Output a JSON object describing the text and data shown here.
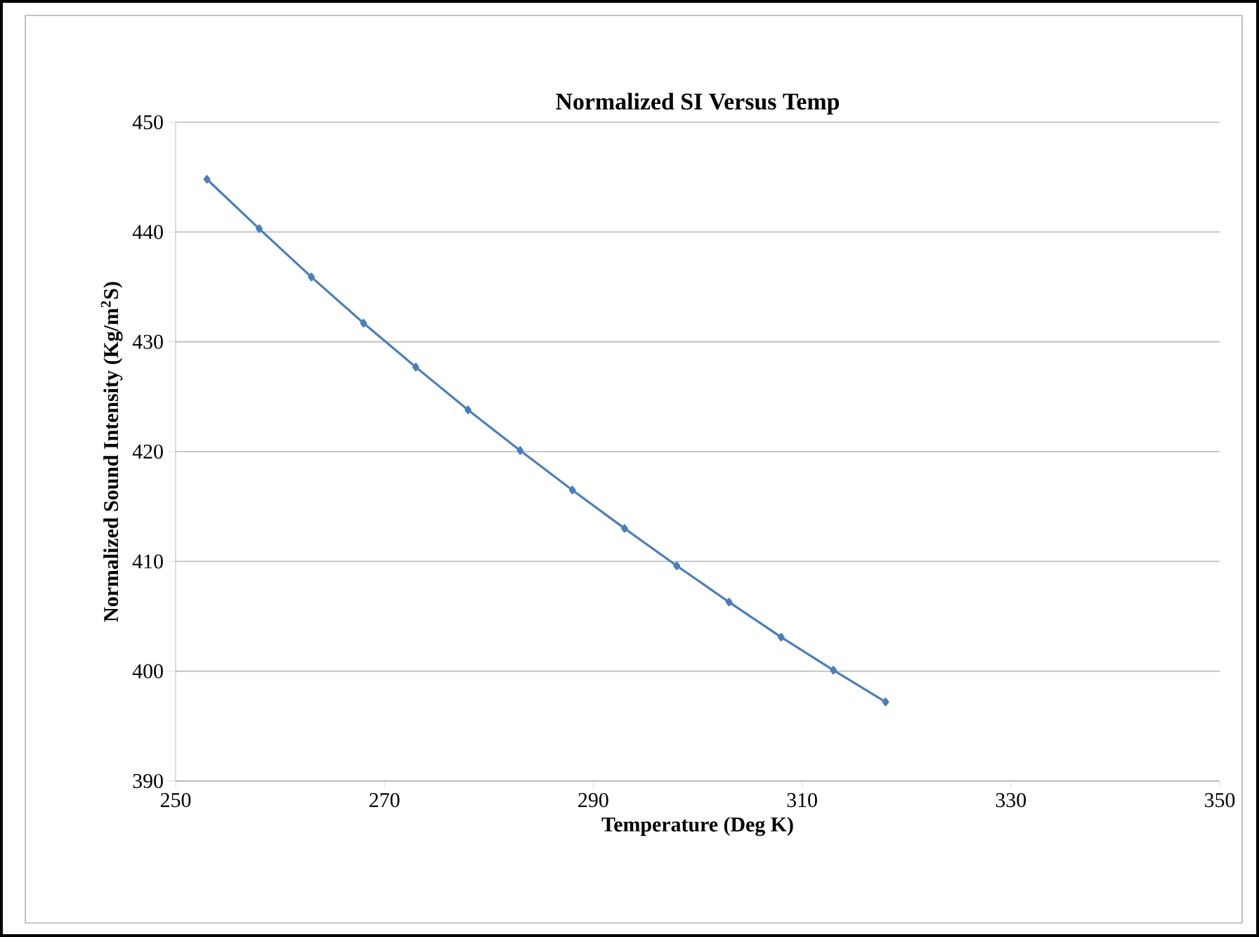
{
  "chart_data": {
    "type": "line",
    "title": "Normalized SI Versus Temp",
    "xlabel": "Temperature (Deg K)",
    "ylabel": "Normalized  Sound Intensity (Kg/m$^{2}$S)",
    "x": [
      253,
      258,
      263,
      268,
      273,
      278,
      283,
      288,
      293,
      298,
      303,
      308,
      313,
      318
    ],
    "series": [
      {
        "color": "#4a7ebb",
        "values": [
          444.8,
          440.3,
          435.9,
          431.7,
          427.7,
          423.8,
          420.1,
          416.5,
          413.0,
          409.6,
          406.3,
          403.1,
          400.1,
          397.2
        ]
      }
    ],
    "xlim": [
      250,
      350
    ],
    "xticks": [
      250,
      270,
      290,
      310,
      330,
      350
    ],
    "ylim": [
      390,
      450
    ],
    "yticks": [
      390,
      400,
      410,
      420,
      430,
      440,
      450
    ],
    "grid": "y",
    "marker": "diamond",
    "line_style": "solid"
  }
}
